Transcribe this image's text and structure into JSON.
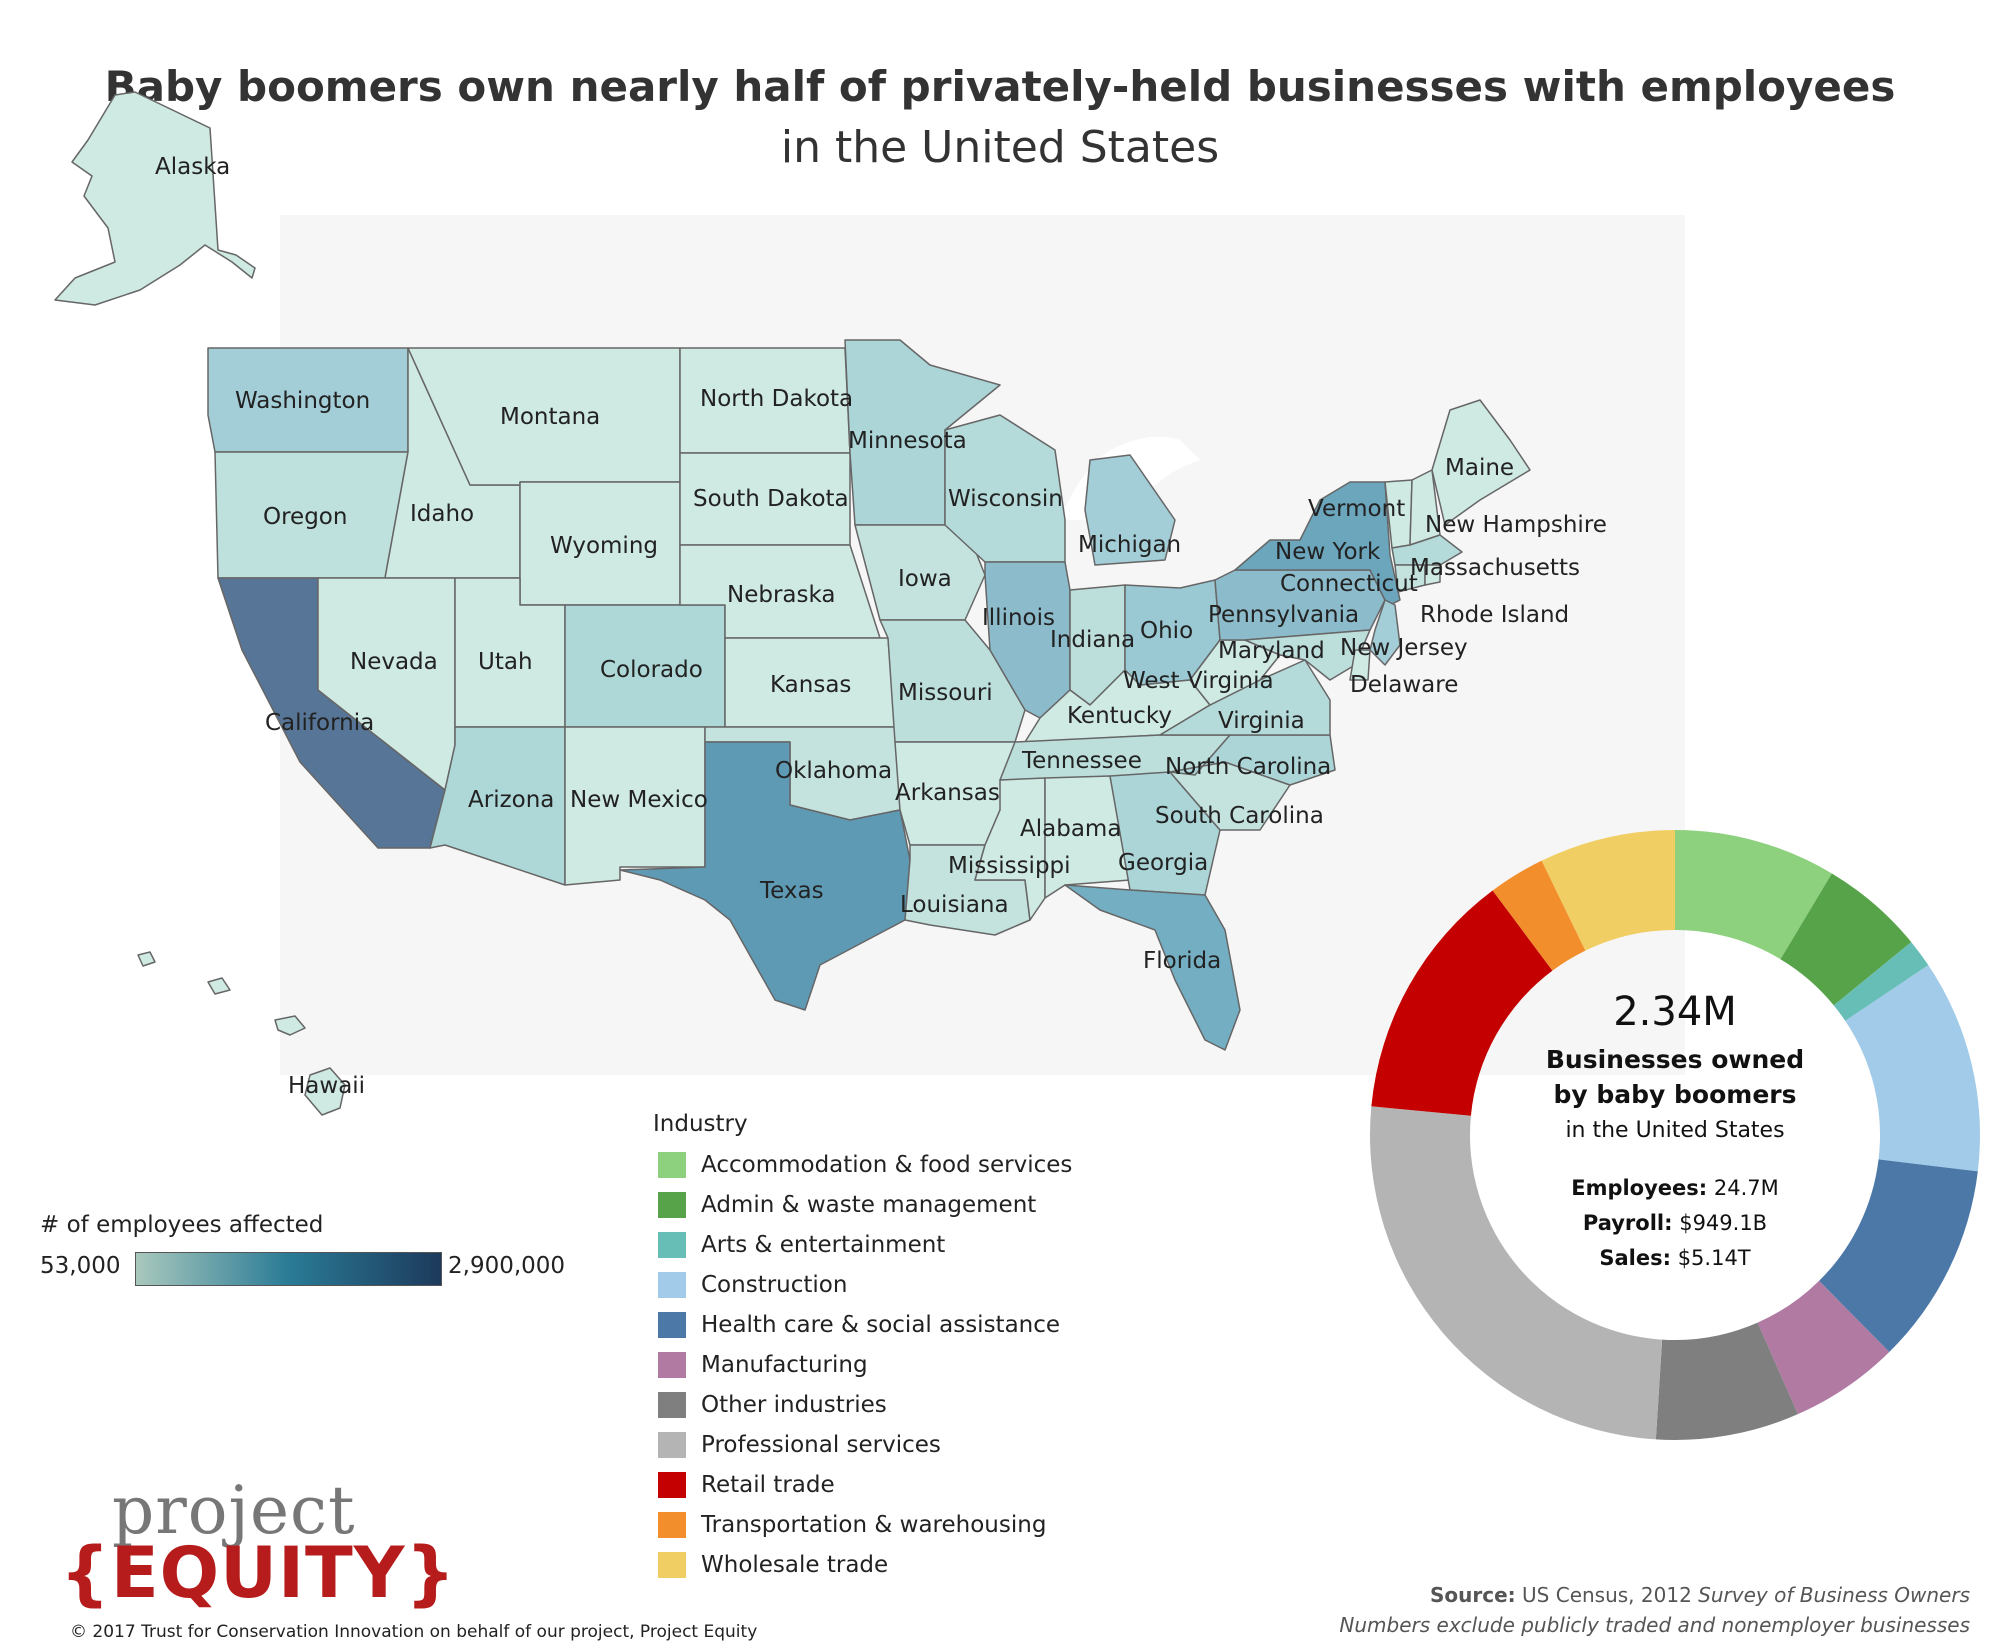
{
  "title": "Baby boomers own nearly half of privately-held businesses with employees",
  "subtitle": "in the United States",
  "map": {
    "color_scale": {
      "low_color": "#a9c8bd",
      "high_color": "#1d3a5c"
    },
    "states": [
      {
        "name": "Alaska",
        "fill": "#cfe9e3"
      },
      {
        "name": "Hawaii",
        "fill": "#cfe9e3"
      },
      {
        "name": "Washington",
        "fill": "#a3ced7"
      },
      {
        "name": "Oregon",
        "fill": "#bfe1dd"
      },
      {
        "name": "California",
        "fill": "#577697"
      },
      {
        "name": "Idaho",
        "fill": "#cfe9e3"
      },
      {
        "name": "Nevada",
        "fill": "#cfe9e3"
      },
      {
        "name": "Montana",
        "fill": "#cfe9e3"
      },
      {
        "name": "Wyoming",
        "fill": "#cfe9e3"
      },
      {
        "name": "Utah",
        "fill": "#cfe9e3"
      },
      {
        "name": "Colorado",
        "fill": "#aed7d7"
      },
      {
        "name": "Arizona",
        "fill": "#aed7d7"
      },
      {
        "name": "New Mexico",
        "fill": "#cfe9e3"
      },
      {
        "name": "North Dakota",
        "fill": "#cfe9e3"
      },
      {
        "name": "South Dakota",
        "fill": "#cfe9e3"
      },
      {
        "name": "Nebraska",
        "fill": "#cfe9e3"
      },
      {
        "name": "Kansas",
        "fill": "#cfe9e3"
      },
      {
        "name": "Oklahoma",
        "fill": "#c4e3de"
      },
      {
        "name": "Texas",
        "fill": "#5f9ab5"
      },
      {
        "name": "Minnesota",
        "fill": "#acd5d8"
      },
      {
        "name": "Iowa",
        "fill": "#c4e3de"
      },
      {
        "name": "Missouri",
        "fill": "#bcdfdc"
      },
      {
        "name": "Arkansas",
        "fill": "#cfe9e3"
      },
      {
        "name": "Louisiana",
        "fill": "#c4e3de"
      },
      {
        "name": "Wisconsin",
        "fill": "#b5dada"
      },
      {
        "name": "Illinois",
        "fill": "#8cbccb"
      },
      {
        "name": "Michigan",
        "fill": "#a3ced7"
      },
      {
        "name": "Indiana",
        "fill": "#bcdfdc"
      },
      {
        "name": "Ohio",
        "fill": "#9ac8d3"
      },
      {
        "name": "Kentucky",
        "fill": "#cfe9e3"
      },
      {
        "name": "Tennessee",
        "fill": "#bcdfdc"
      },
      {
        "name": "Mississippi",
        "fill": "#cfe9e3"
      },
      {
        "name": "Alabama",
        "fill": "#cfe9e3"
      },
      {
        "name": "Georgia",
        "fill": "#acd5d8"
      },
      {
        "name": "Florida",
        "fill": "#73aec3"
      },
      {
        "name": "South Carolina",
        "fill": "#c4e3de"
      },
      {
        "name": "North Carolina",
        "fill": "#acd5d8"
      },
      {
        "name": "Virginia",
        "fill": "#b5dada"
      },
      {
        "name": "West Virginia",
        "fill": "#cfe9e3"
      },
      {
        "name": "Pennsylvania",
        "fill": "#8cbccb"
      },
      {
        "name": "New York",
        "fill": "#6ba6bd"
      },
      {
        "name": "New Jersey",
        "fill": "#a3ced7"
      },
      {
        "name": "Maryland",
        "fill": "#bcdfdc"
      },
      {
        "name": "Delaware",
        "fill": "#cfe9e3"
      },
      {
        "name": "Vermont",
        "fill": "#cfe9e3"
      },
      {
        "name": "New Hampshire",
        "fill": "#cfe9e3"
      },
      {
        "name": "Maine",
        "fill": "#cfe9e3"
      },
      {
        "name": "Massachusetts",
        "fill": "#b5dada"
      },
      {
        "name": "Connecticut",
        "fill": "#c4e3de"
      },
      {
        "name": "Rhode Island",
        "fill": "#cfe9e3"
      }
    ]
  },
  "employees_legend": {
    "title": "# of employees affected",
    "min_label": "53,000",
    "max_label": "2,900,000"
  },
  "industry_legend": {
    "title": "Industry",
    "items": [
      {
        "label": "Accommodation & food services",
        "color": "#8dd17e"
      },
      {
        "label": "Admin & waste management",
        "color": "#57a34a"
      },
      {
        "label": "Arts & entertainment",
        "color": "#67beb6"
      },
      {
        "label": "Construction",
        "color": "#a1cbe9"
      },
      {
        "label": "Health care & social assistance",
        "color": "#4c78a8"
      },
      {
        "label": "Manufacturing",
        "color": "#b07aa3"
      },
      {
        "label": "Other industries",
        "color": "#7f7f7f"
      },
      {
        "label": "Professional services",
        "color": "#b4b4b4"
      },
      {
        "label": "Retail trade",
        "color": "#c40000"
      },
      {
        "label": "Transportation & warehousing",
        "color": "#f28e2b"
      },
      {
        "label": "Wholesale trade",
        "color": "#f1ce63"
      }
    ]
  },
  "chart_data": {
    "type": "pie",
    "donut": true,
    "unit": "share of businesses",
    "slices": [
      {
        "label": "Accommodation & food services",
        "value": 0.086,
        "color": "#8dd17e"
      },
      {
        "label": "Admin & waste management",
        "value": 0.055,
        "color": "#57a34a"
      },
      {
        "label": "Arts & entertainment",
        "value": 0.015,
        "color": "#67beb6"
      },
      {
        "label": "Construction",
        "value": 0.113,
        "color": "#a1cbe9"
      },
      {
        "label": "Health care & social assistance",
        "value": 0.107,
        "color": "#4c78a8"
      },
      {
        "label": "Manufacturing",
        "value": 0.058,
        "color": "#b07aa3"
      },
      {
        "label": "Other industries",
        "value": 0.076,
        "color": "#7f7f7f"
      },
      {
        "label": "Professional services",
        "value": 0.255,
        "color": "#b4b4b4"
      },
      {
        "label": "Retail trade",
        "value": 0.133,
        "color": "#c40000"
      },
      {
        "label": "Transportation & warehousing",
        "value": 0.03,
        "color": "#f28e2b"
      },
      {
        "label": "Wholesale trade",
        "value": 0.072,
        "color": "#f1ce63"
      }
    ]
  },
  "donut_center": {
    "big_number": "2.34M",
    "line1": "Businesses owned",
    "line2": "by baby boomers",
    "line3": "in the United States",
    "employees_key": "Employees:",
    "employees_value": "24.7M",
    "payroll_key": "Payroll:",
    "payroll_value": "$949.1B",
    "sales_key": "Sales:",
    "sales_value": "$5.14T"
  },
  "logo": {
    "top": "project",
    "bottom": "{EQUITY}"
  },
  "copyright": "© 2017 Trust for Conservation Innovation on behalf of our project, Project Equity",
  "source": {
    "key": "Source:",
    "text": "US Census, 2012",
    "title": "Survey of Business Owners",
    "note": "Numbers exclude publicly traded and nonemployer businesses"
  }
}
